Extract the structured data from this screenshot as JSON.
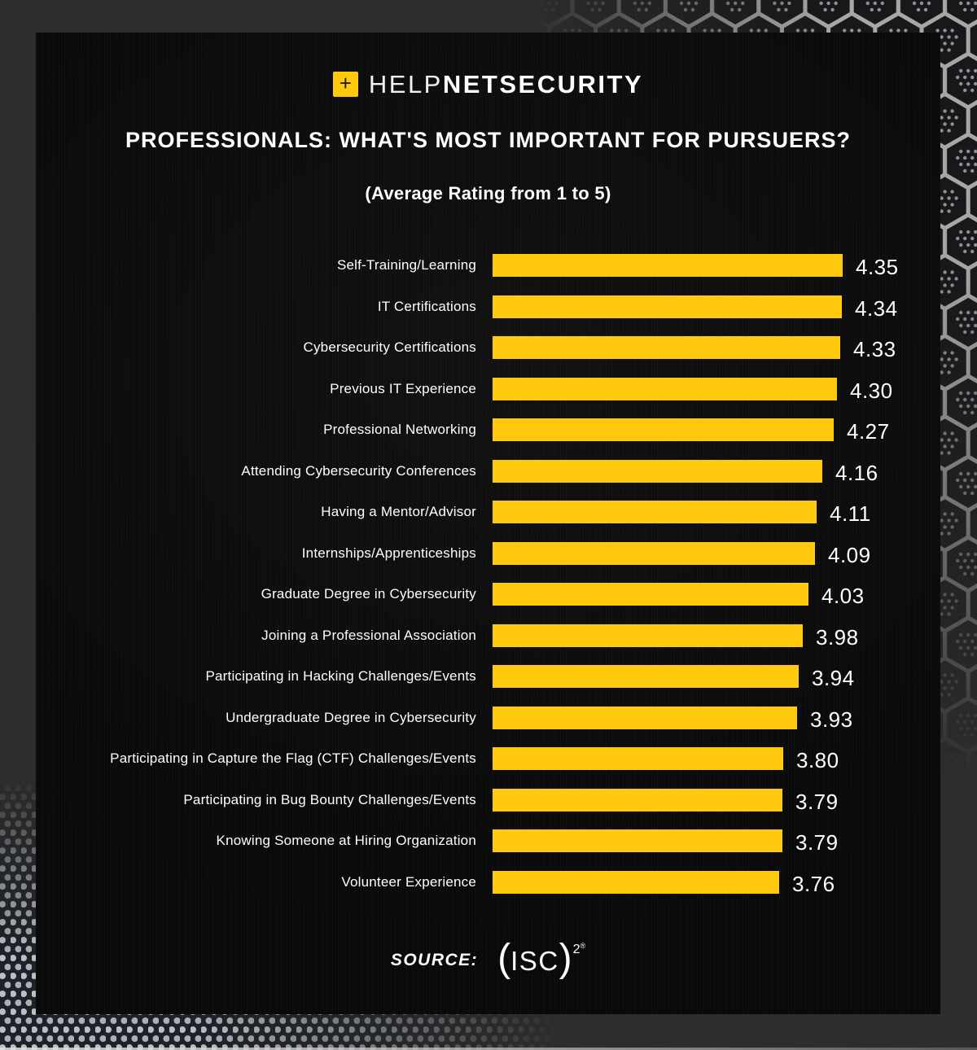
{
  "brand": {
    "plus_glyph": "+",
    "name_light": "HELP",
    "name_bold": "NETSECURITY"
  },
  "header": {
    "title": "PROFESSIONALS: WHAT'S MOST IMPORTANT FOR PURSUERS?",
    "subtitle": "(Average Rating from 1 to 5)"
  },
  "footer": {
    "source_label": "SOURCE:",
    "source_org": "(ISC)",
    "source_org_paren_left": "(",
    "source_org_core": "ISC",
    "source_org_paren_right": ")",
    "source_sup": "2",
    "source_reg": "®"
  },
  "colors": {
    "accent_yellow": "#ffc90d",
    "panel_background": "#0c0c0d",
    "outer_background": "#2d2d2d",
    "text": "#ffffff"
  },
  "chart_data": {
    "type": "bar",
    "orientation": "horizontal",
    "title": "PROFESSIONALS: WHAT'S MOST IMPORTANT FOR PURSUERS?",
    "subtitle": "(Average Rating from 1 to 5)",
    "categories": [
      "Self-Training/Learning",
      "IT Certifications",
      "Cybersecurity Certifications",
      "Previous IT Experience",
      "Professional Networking",
      "Attending Cybersecurity Conferences",
      "Having a Mentor/Advisor",
      "Internships/Apprenticeships",
      "Graduate Degree in Cybersecurity",
      "Joining a Professional Association",
      "Participating in Hacking Challenges/Events",
      "Undergraduate Degree in Cybersecurity",
      "Participating in Capture the Flag (CTF) Challenges/Events",
      "Participating in Bug Bounty Challenges/Events",
      "Knowing Someone at Hiring Organization",
      "Volunteer Experience"
    ],
    "values": [
      4.35,
      4.34,
      4.33,
      4.3,
      4.27,
      4.16,
      4.11,
      4.09,
      4.03,
      3.98,
      3.94,
      3.93,
      3.8,
      3.79,
      3.79,
      3.76
    ],
    "value_decimals": 2,
    "rating_scale_min": 1,
    "rating_scale_max": 5,
    "bar_color": "#ffc90d",
    "grid": false,
    "legend": "none",
    "value_label_position": "right-of-bar"
  }
}
